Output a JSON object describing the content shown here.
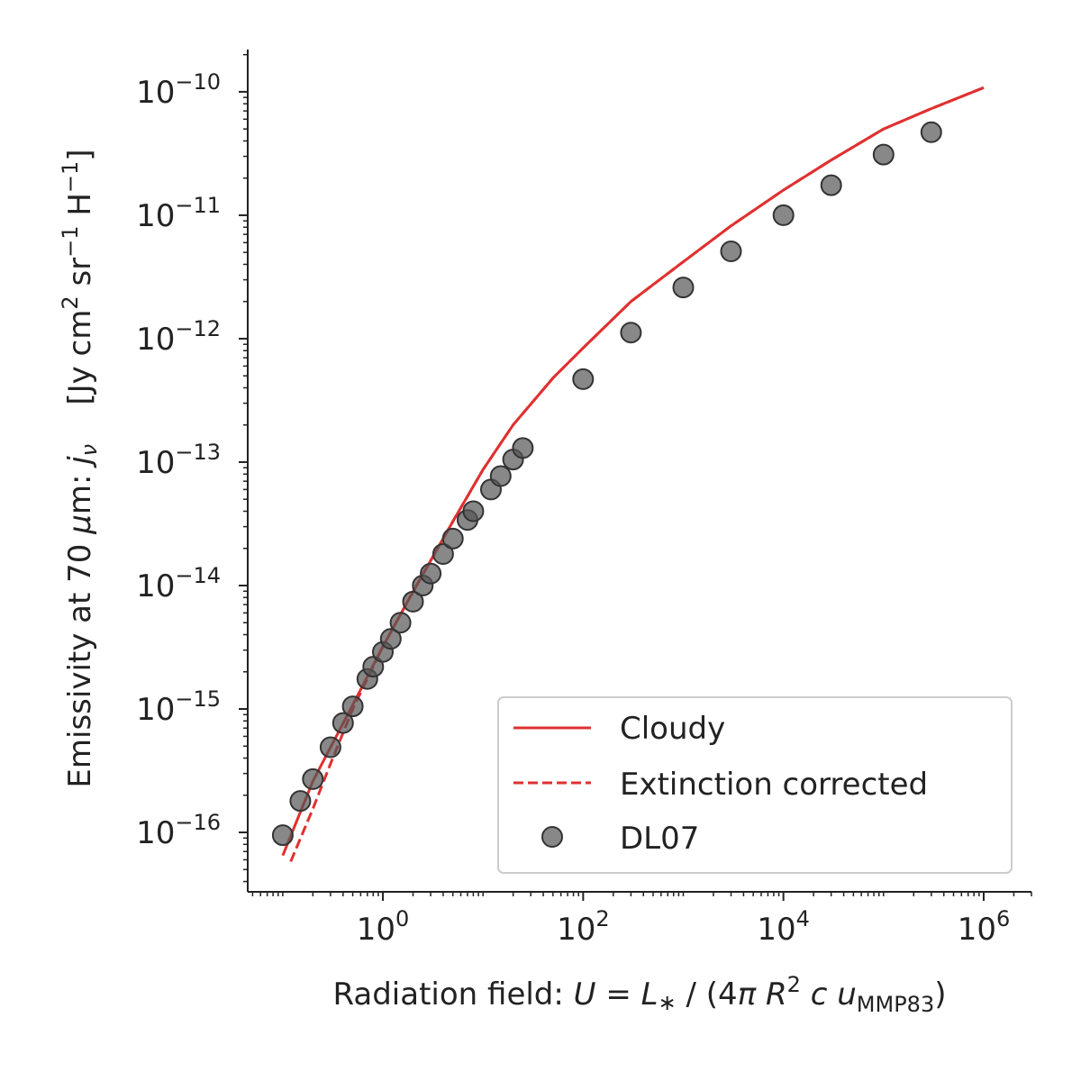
{
  "chart_data": {
    "type": "line",
    "title": "",
    "xlabel": "Radiation field: U = L∗ / (4π R² c uMMP83)",
    "xlabel_parts": {
      "prefix": "Radiation field: ",
      "u": "U",
      "eq": " = ",
      "l": "L",
      "star": "∗",
      "slash": " / (4",
      "pi": "π",
      "r": "R",
      "r_sup": "2",
      "c": "c",
      "u2": "u",
      "sub": "MMP83",
      "close": ")"
    },
    "ylabel": "Emissivity at 70 μm: jν   [Jy cm² sr⁻¹ H⁻¹]",
    "ylabel_parts": {
      "prefix": "Emissivity at 70 ",
      "mu": "μ",
      "m": "m: ",
      "j": "j",
      "nu": "ν",
      "units_a": "[Jy cm",
      "sup2": "2",
      "units_b": " sr",
      "supm1a": "−1",
      "units_c": " H",
      "supm1b": "−1",
      "units_d": "]"
    },
    "x_scale": "log",
    "y_scale": "log",
    "xlim": [
      0.0447,
      3000000.0
    ],
    "ylim": [
      3.3e-17,
      2.2e-10
    ],
    "x_ticks": [
      {
        "value": 1,
        "base": "10",
        "exp": "0"
      },
      {
        "value": 100,
        "base": "10",
        "exp": "2"
      },
      {
        "value": 10000,
        "base": "10",
        "exp": "4"
      },
      {
        "value": 1000000,
        "base": "10",
        "exp": "6"
      }
    ],
    "y_ticks": [
      {
        "value": 1e-16,
        "base": "10",
        "exp": "−16"
      },
      {
        "value": 1e-15,
        "base": "10",
        "exp": "−15"
      },
      {
        "value": 1e-14,
        "base": "10",
        "exp": "−14"
      },
      {
        "value": 1e-13,
        "base": "10",
        "exp": "−13"
      },
      {
        "value": 1e-12,
        "base": "10",
        "exp": "−12"
      },
      {
        "value": 1e-11,
        "base": "10",
        "exp": "−11"
      },
      {
        "value": 1e-10,
        "base": "10",
        "exp": "−10"
      }
    ],
    "grid": false,
    "legend_position": "bottom-right",
    "series": [
      {
        "name": "Cloudy",
        "kind": "line",
        "style": "solid",
        "color": "#e03030",
        "x": [
          0.1,
          0.2,
          0.5,
          1,
          2,
          5,
          10,
          20,
          50,
          100,
          300,
          1000,
          3000,
          10000,
          30000,
          100000,
          300000,
          1000000
        ],
        "y": [
          6.5e-17,
          2.6e-16,
          1.08e-15,
          3.2e-15,
          8.9e-15,
          3.3e-14,
          8.7e-14,
          2e-13,
          4.8e-13,
          8.4e-13,
          2e-12,
          4.2e-12,
          8.2e-12,
          1.6e-11,
          2.8e-11,
          5e-11,
          7.3e-11,
          1.08e-10
        ]
      },
      {
        "name": "Extinction corrected",
        "kind": "line",
        "style": "dashed",
        "color": "#e03030",
        "x": [
          0.12,
          0.2,
          0.3,
          0.5,
          1,
          2,
          5,
          10,
          20,
          50,
          100,
          300,
          1000,
          3000,
          10000,
          30000,
          100000,
          300000,
          1000000
        ],
        "y": [
          5.8e-17,
          1.55e-16,
          3.6e-16,
          1e-15,
          3.2e-15,
          8.9e-15,
          3.3e-14,
          8.7e-14,
          2e-13,
          4.8e-13,
          8.4e-13,
          2e-12,
          4.2e-12,
          8.2e-12,
          1.6e-11,
          2.8e-11,
          5e-11,
          7.3e-11,
          1.08e-10
        ]
      },
      {
        "name": "DL07",
        "kind": "scatter",
        "color": "#555555",
        "x": [
          0.1,
          0.15,
          0.2,
          0.3,
          0.4,
          0.5,
          0.7,
          0.8,
          1.0,
          1.2,
          1.5,
          2.0,
          2.5,
          3.0,
          4.0,
          5.0,
          7.0,
          8.0,
          12,
          15,
          20,
          25,
          100,
          300,
          1000,
          3000,
          10000,
          30000,
          100000,
          300000
        ],
        "y": [
          9.5e-17,
          1.8e-16,
          2.7e-16,
          4.9e-16,
          7.7e-16,
          1.05e-15,
          1.75e-15,
          2.2e-15,
          2.9e-15,
          3.7e-15,
          5e-15,
          7.4e-15,
          1e-14,
          1.25e-14,
          1.8e-14,
          2.4e-14,
          3.4e-14,
          4e-14,
          6e-14,
          7.7e-14,
          1.05e-13,
          1.3e-13,
          4.7e-13,
          1.12e-12,
          2.6e-12,
          5.1e-12,
          1e-11,
          1.75e-11,
          3.1e-11,
          4.7e-11
        ]
      }
    ]
  }
}
